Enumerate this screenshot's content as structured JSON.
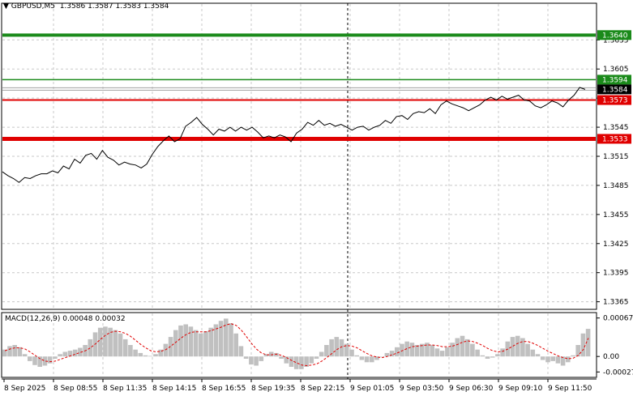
{
  "header": {
    "symbol": "GBPUSD,M5",
    "open": "1.3586",
    "high": "1.3587",
    "low": "1.3583",
    "close": "1.3584"
  },
  "macd_header": {
    "label": "MACD(12,26,9)",
    "macd": "0.00048",
    "signal": "0.00032"
  },
  "colors": {
    "grid": "#c8c8c8",
    "price_line": "#000000",
    "green_level": "#1a8a1a",
    "red_level": "#e00000",
    "histogram": "#c0c0c0",
    "signal_line": "#e00000",
    "axis_text": "#000000"
  },
  "chart_data": [
    {
      "type": "line",
      "title": "",
      "ylim": [
        1.3358,
        1.3672
      ],
      "y_ticks": [
        "1.3635",
        "1.3605",
        "1.3575",
        "1.3545",
        "1.3515",
        "1.3485",
        "1.3455",
        "1.3425",
        "1.3395",
        "1.3365"
      ],
      "x_ticks": [
        "8 Sep 2025",
        "8 Sep 08:55",
        "8 Sep 11:35",
        "8 Sep 14:15",
        "8 Sep 16:55",
        "8 Sep 19:35",
        "8 Sep 22:15",
        "9 Sep 01:05",
        "9 Sep 03:50",
        "9 Sep 06:30",
        "9 Sep 09:10",
        "9 Sep 11:50"
      ],
      "levels": [
        {
          "value": 1.364,
          "label": "1.3640",
          "color": "#1a8a1a",
          "width": 4
        },
        {
          "value": 1.3594,
          "label": "1.3594",
          "color": "#1a8a1a",
          "width": 1.5
        },
        {
          "value": 1.3573,
          "label": "1.3573",
          "color": "#e00000",
          "width": 2
        },
        {
          "value": 1.3533,
          "label": "1.3533",
          "color": "#e00000",
          "width": 5
        }
      ],
      "current_price": {
        "value": 1.3584,
        "label": "1.3584"
      },
      "series": [
        {
          "values": [
            1.3499,
            1.3495,
            1.3492,
            1.3488,
            1.3493,
            1.3492,
            1.3495,
            1.3497,
            1.3497,
            1.35,
            1.3498,
            1.3505,
            1.3502,
            1.3512,
            1.3508,
            1.3516,
            1.3518,
            1.3512,
            1.3521,
            1.3514,
            1.3511,
            1.3506,
            1.3509,
            1.3507,
            1.3506,
            1.3503,
            1.3507,
            1.3517,
            1.3525,
            1.3531,
            1.3536,
            1.353,
            1.3533,
            1.3546,
            1.355,
            1.3555,
            1.3548,
            1.3543,
            1.3537,
            1.3543,
            1.3541,
            1.3545,
            1.3541,
            1.3545,
            1.3542,
            1.3545,
            1.354,
            1.3534,
            1.3536,
            1.3534,
            1.3537,
            1.3535,
            1.353,
            1.3539,
            1.3543,
            1.355,
            1.3547,
            1.3552,
            1.3547,
            1.3549,
            1.3546,
            1.3548,
            1.3545,
            1.3542,
            1.3545,
            1.3546,
            1.3542,
            1.3545,
            1.3547,
            1.3552,
            1.3549,
            1.3556,
            1.3557,
            1.3553,
            1.3559,
            1.3561,
            1.356,
            1.3564,
            1.3559,
            1.3568,
            1.3572,
            1.3569,
            1.3567,
            1.3565,
            1.3562,
            1.3565,
            1.3568,
            1.3573,
            1.3576,
            1.3573,
            1.3577,
            1.3574,
            1.3576,
            1.3578,
            1.3573,
            1.3572,
            1.3567,
            1.3565,
            1.3568,
            1.3572,
            1.357,
            1.3566,
            1.3573,
            1.3578,
            1.3586,
            1.3584
          ]
        }
      ]
    },
    {
      "type": "bar",
      "title": "MACD(12,26,9)",
      "ylim": [
        -0.00035,
        0.00075
      ],
      "y_ticks": [
        "0.00067",
        "0.00",
        "-0.00027"
      ],
      "series": [
        {
          "name": "MACD(12,26,9)",
          "values": [
            0.00012,
            0.00018,
            0.0002,
            0.00016,
            4e-05,
            -8e-05,
            -0.00015,
            -0.00018,
            -0.00016,
            -0.00012,
            -4e-05,
            4e-05,
            8e-05,
            0.0001,
            0.00012,
            0.00015,
            0.0002,
            0.0003,
            0.00042,
            0.0005,
            0.00052,
            0.0005,
            0.00046,
            0.0004,
            0.0003,
            0.0002,
            0.00012,
            6e-05,
            2e-05,
            1e-05,
            4e-05,
            0.00012,
            0.00022,
            0.00034,
            0.00046,
            0.00054,
            0.00056,
            0.00052,
            0.00046,
            0.0004,
            0.00044,
            0.0005,
            0.00056,
            0.00062,
            0.00066,
            0.00058,
            0.0004,
            0.00018,
            -4e-05,
            -0.00014,
            -0.00016,
            -8e-05,
            4e-05,
            8e-05,
            6e-05,
            -4e-05,
            -0.00012,
            -0.00018,
            -0.00022,
            -0.00022,
            -0.00018,
            -0.00012,
            -4e-05,
            8e-05,
            0.0002,
            0.0003,
            0.00034,
            0.0003,
            0.00022,
            0.00012,
            2e-05,
            -6e-05,
            -0.0001,
            -0.0001,
            -6e-05,
            0.0,
            6e-05,
            0.0001,
            0.00016,
            0.00022,
            0.00026,
            0.00024,
            0.0002,
            0.00022,
            0.00024,
            0.0002,
            0.00014,
            0.0001,
            0.00016,
            0.00024,
            0.00032,
            0.00036,
            0.0003,
            0.00022,
            0.00012,
            2e-05,
            -4e-05,
            -2e-05,
            4e-05,
            0.00014,
            0.00026,
            0.00034,
            0.00036,
            0.00032,
            0.00022,
            0.00012,
            4e-05,
            -6e-05,
            -0.0001,
            -8e-05,
            -0.00012,
            -0.00016,
            -0.0001,
            2e-05,
            0.0002,
            0.0004,
            0.00048
          ]
        },
        {
          "name": "Signal",
          "values": [
            0.0001,
            0.00013,
            0.00015,
            0.00015,
            0.00013,
            8e-05,
            2e-05,
            -4e-05,
            -8e-05,
            -9e-05,
            -8e-05,
            -5e-05,
            -2e-05,
            1e-05,
            4e-05,
            7e-05,
            0.0001,
            0.00015,
            0.00022,
            0.0003,
            0.00037,
            0.00042,
            0.00044,
            0.00043,
            0.0004,
            0.00035,
            0.00028,
            0.00021,
            0.00015,
            0.0001,
            8e-05,
            9e-05,
            0.00012,
            0.00018,
            0.00025,
            0.00032,
            0.00038,
            0.00042,
            0.00043,
            0.00043,
            0.00043,
            0.00045,
            0.00048,
            0.00051,
            0.00055,
            0.00057,
            0.00054,
            0.00046,
            0.00035,
            0.00023,
            0.00013,
            6e-05,
            3e-05,
            3e-05,
            4e-05,
            2e-05,
            -2e-05,
            -7e-05,
            -0.00011,
            -0.00015,
            -0.00016,
            -0.00015,
            -0.00013,
            -8e-05,
            -2e-05,
            5e-05,
            0.00012,
            0.00017,
            0.00019,
            0.00018,
            0.00015,
            0.0001,
            5e-05,
            1e-05,
            -1e-05,
            -2e-05,
            0.0,
            3e-05,
            6e-05,
            0.0001,
            0.00014,
            0.00017,
            0.00018,
            0.00019,
            0.0002,
            0.0002,
            0.00019,
            0.00017,
            0.00017,
            0.00018,
            0.00021,
            0.00025,
            0.00027,
            0.00026,
            0.00023,
            0.00019,
            0.00014,
            0.0001,
            8e-05,
            9e-05,
            0.00013,
            0.00018,
            0.00023,
            0.00026,
            0.00026,
            0.00023,
            0.00019,
            0.00014,
            9e-05,
            5e-05,
            1e-05,
            -2e-05,
            -4e-05,
            -3e-05,
            2e-05,
            0.00012,
            0.00032
          ]
        }
      ]
    }
  ]
}
